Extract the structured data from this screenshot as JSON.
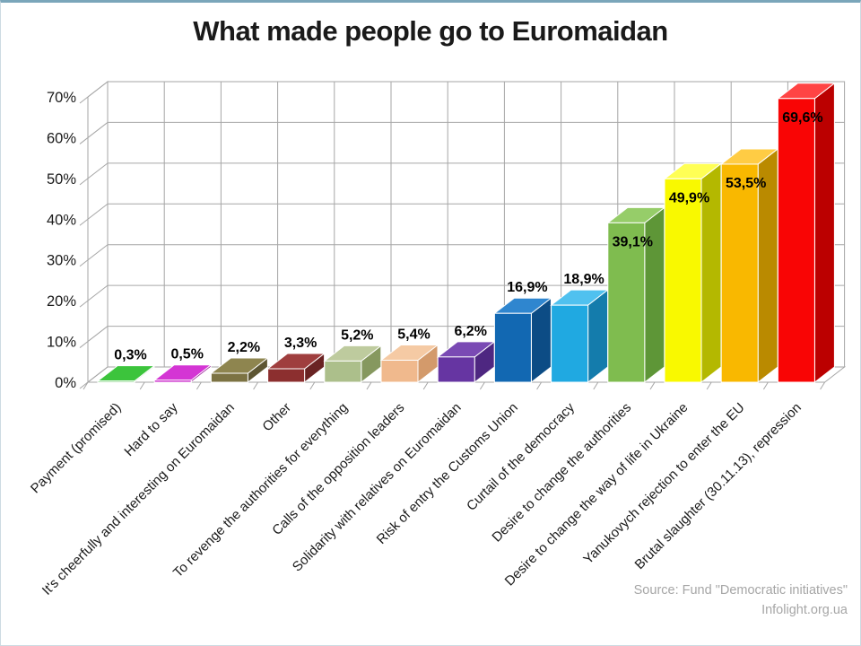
{
  "title": "What made people go to Euromaidan",
  "source": {
    "line1": "Source: Fund \"Democratic initiatives\"",
    "line2": "Infolight.org.ua"
  },
  "chart_data": {
    "type": "bar",
    "projection": "3d-column",
    "title": "What made people go to Euromaidan",
    "categories": [
      "Payment (promised)",
      "Hard to say",
      "It's cheerfully and interesting on Euromaidan",
      "Other",
      "To revenge the authorities for everything",
      "Calls of the opposition leaders",
      "Solidarity with relatives on Euromaidan",
      "Risk of entry the Customs Union",
      "Curtail of the democracy",
      "Desire to change the authorities",
      "Desire to change the way of life in Ukraine",
      "Yanukovych rejection to enter the EU",
      "Brutal slaughter (30.11.13), repression"
    ],
    "values": [
      0.3,
      0.5,
      2.2,
      3.3,
      5.2,
      5.4,
      6.2,
      16.9,
      18.9,
      39.1,
      49.9,
      53.5,
      69.6
    ],
    "value_labels": [
      "0,3%",
      "0,5%",
      "2,2%",
      "3,3%",
      "5,2%",
      "5,4%",
      "6,2%",
      "16,9%",
      "18,9%",
      "39,1%",
      "49,9%",
      "53,5%",
      "69,6%"
    ],
    "bar_colors": [
      {
        "front": "#2BB32B",
        "top": "#3CC43C",
        "side": "#1F861F"
      },
      {
        "front": "#C511C5",
        "top": "#D435D4",
        "side": "#930D93"
      },
      {
        "front": "#7C7343",
        "top": "#8E854F",
        "side": "#5D5633"
      },
      {
        "front": "#8C2F2F",
        "top": "#9F3E3E",
        "side": "#692323"
      },
      {
        "front": "#ACBF8B",
        "top": "#BECB9E",
        "side": "#86985F"
      },
      {
        "front": "#F0B98D",
        "top": "#F5CAA4",
        "side": "#D39A6B"
      },
      {
        "front": "#6635A2",
        "top": "#7A4AB4",
        "side": "#4E2781"
      },
      {
        "front": "#1268B2",
        "top": "#2F86CF",
        "side": "#0C4C85"
      },
      {
        "front": "#20A9E1",
        "top": "#50C1EF",
        "side": "#147CAC"
      },
      {
        "front": "#7FBC4F",
        "top": "#96CD69",
        "side": "#5E9637"
      },
      {
        "front": "#F9F900",
        "top": "#FFFF55",
        "side": "#B4B800"
      },
      {
        "front": "#F9B800",
        "top": "#FFCC44",
        "side": "#BA8A00"
      },
      {
        "front": "#F90505",
        "top": "#FF4444",
        "side": "#BB0000"
      }
    ],
    "y_ticks": [
      "0%",
      "10%",
      "20%",
      "30%",
      "40%",
      "50%",
      "60%",
      "70%"
    ],
    "ylim": [
      0,
      70
    ],
    "xlabel": "",
    "ylabel": "",
    "grid": true,
    "legend": false,
    "gridline_color": "#A6A6A6",
    "axis_text_color": "#1a1a1a",
    "data_label_color": "#000000"
  }
}
